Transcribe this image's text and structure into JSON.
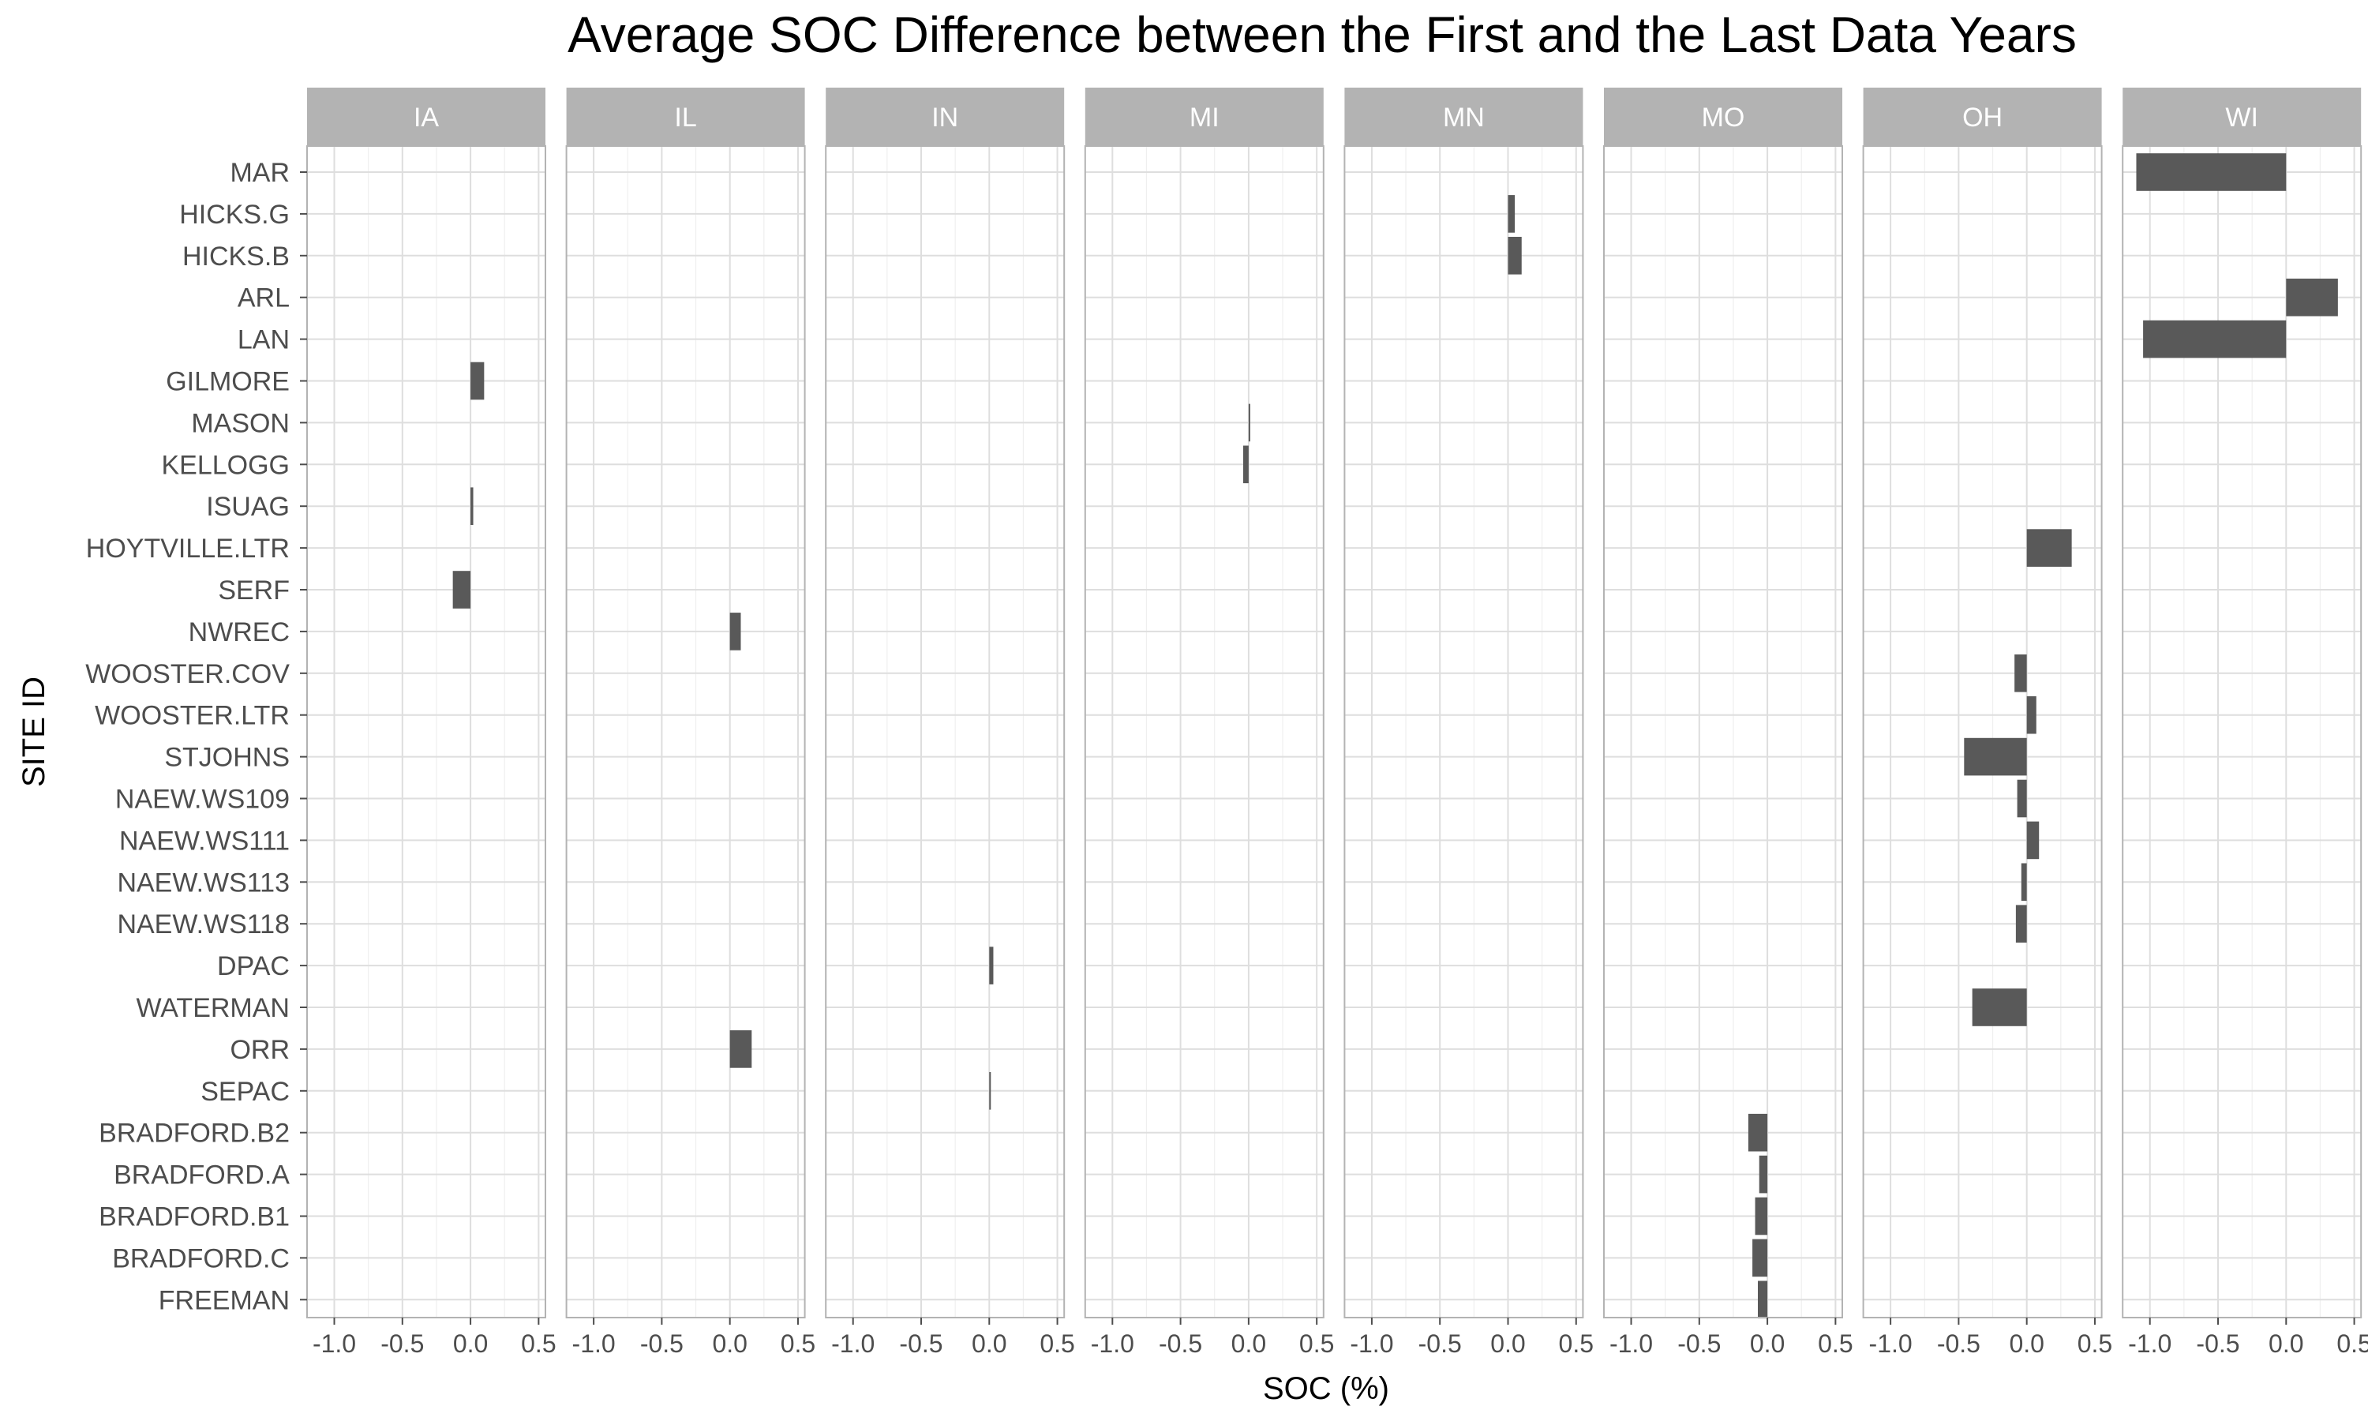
{
  "chart_data": {
    "type": "bar",
    "orientation": "horizontal",
    "title": "Average SOC Difference between the First and the Last Data Years",
    "xlabel": "SOC (%)",
    "ylabel": "SITE ID",
    "xlim": [
      -1.2,
      0.55
    ],
    "xticks": [
      -1.0,
      -0.5,
      0.0,
      0.5
    ],
    "xtick_labels": [
      "-1.0",
      "-0.5",
      "0.0",
      "0.5"
    ],
    "grid": true,
    "facets": [
      "IA",
      "IL",
      "IN",
      "MI",
      "MN",
      "MO",
      "OH",
      "WI"
    ],
    "categories": [
      "MAR",
      "HICKS.G",
      "HICKS.B",
      "ARL",
      "LAN",
      "GILMORE",
      "MASON",
      "KELLOGG",
      "ISUAG",
      "HOYTVILLE.LTR",
      "SERF",
      "NWREC",
      "WOOSTER.COV",
      "WOOSTER.LTR",
      "STJOHNS",
      "NAEW.WS109",
      "NAEW.WS111",
      "NAEW.WS113",
      "NAEW.WS118",
      "DPAC",
      "WATERMAN",
      "ORR",
      "SEPAC",
      "BRADFORD.B2",
      "BRADFORD.A",
      "BRADFORD.B1",
      "BRADFORD.C",
      "FREEMAN"
    ],
    "bars": [
      {
        "site": "MAR",
        "facet": "WI",
        "value": -1.1
      },
      {
        "site": "HICKS.G",
        "facet": "MN",
        "value": 0.05
      },
      {
        "site": "HICKS.B",
        "facet": "MN",
        "value": 0.1
      },
      {
        "site": "ARL",
        "facet": "WI",
        "value": 0.38
      },
      {
        "site": "LAN",
        "facet": "WI",
        "value": -1.05
      },
      {
        "site": "GILMORE",
        "facet": "IA",
        "value": 0.1
      },
      {
        "site": "MASON",
        "facet": "MI",
        "value": 0.01
      },
      {
        "site": "KELLOGG",
        "facet": "MI",
        "value": -0.04
      },
      {
        "site": "ISUAG",
        "facet": "IA",
        "value": 0.02
      },
      {
        "site": "HOYTVILLE.LTR",
        "facet": "OH",
        "value": 0.33
      },
      {
        "site": "SERF",
        "facet": "IA",
        "value": -0.13
      },
      {
        "site": "NWREC",
        "facet": "IL",
        "value": 0.08
      },
      {
        "site": "WOOSTER.COV",
        "facet": "OH",
        "value": -0.09
      },
      {
        "site": "WOOSTER.LTR",
        "facet": "OH",
        "value": 0.07
      },
      {
        "site": "STJOHNS",
        "facet": "OH",
        "value": -0.46
      },
      {
        "site": "NAEW.WS109",
        "facet": "OH",
        "value": -0.07
      },
      {
        "site": "NAEW.WS111",
        "facet": "OH",
        "value": 0.09
      },
      {
        "site": "NAEW.WS113",
        "facet": "OH",
        "value": -0.04
      },
      {
        "site": "NAEW.WS118",
        "facet": "OH",
        "value": -0.08
      },
      {
        "site": "DPAC",
        "facet": "IN",
        "value": 0.03
      },
      {
        "site": "WATERMAN",
        "facet": "OH",
        "value": -0.4
      },
      {
        "site": "ORR",
        "facet": "IL",
        "value": 0.16
      },
      {
        "site": "SEPAC",
        "facet": "IN",
        "value": 0.01
      },
      {
        "site": "BRADFORD.B2",
        "facet": "MO",
        "value": -0.14
      },
      {
        "site": "BRADFORD.A",
        "facet": "MO",
        "value": -0.06
      },
      {
        "site": "BRADFORD.B1",
        "facet": "MO",
        "value": -0.09
      },
      {
        "site": "BRADFORD.C",
        "facet": "MO",
        "value": -0.11
      },
      {
        "site": "FREEMAN",
        "facet": "MO",
        "value": -0.07
      }
    ],
    "bar_color": "#595959",
    "strip_color": "#b3b3b3",
    "strip_text_color": "#ffffff",
    "panel_border_color": "#b3b3b3",
    "grid_color": "#dedede"
  }
}
